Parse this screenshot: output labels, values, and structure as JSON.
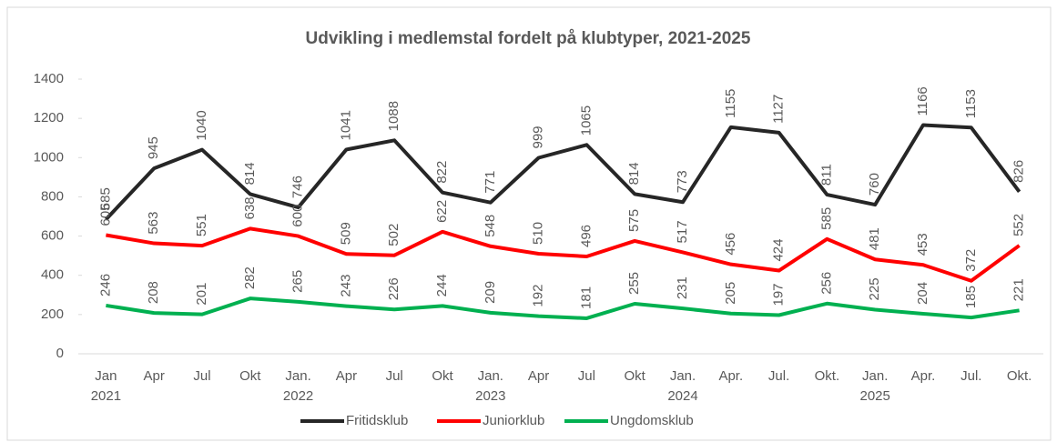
{
  "chart_data": {
    "type": "line",
    "title": "Udvikling i medlemstal fordelt på klubtyper, 2021-2025",
    "categories": [
      [
        "Jan",
        "2021"
      ],
      [
        "Apr"
      ],
      [
        "Jul"
      ],
      [
        "Okt"
      ],
      [
        "Jan.",
        "2022"
      ],
      [
        "Apr"
      ],
      [
        "Jul"
      ],
      [
        "Okt"
      ],
      [
        "Jan.",
        "2023"
      ],
      [
        "Apr"
      ],
      [
        "Jul"
      ],
      [
        "Okt"
      ],
      [
        "Jan.",
        "2024"
      ],
      [
        "Apr."
      ],
      [
        "Jul."
      ],
      [
        "Okt."
      ],
      [
        "Jan.",
        "2025"
      ],
      [
        "Apr."
      ],
      [
        "Jul."
      ],
      [
        "Okt."
      ]
    ],
    "series": [
      {
        "name": "Fritidsklub",
        "color": "#262626",
        "values": [
          685,
          945,
          1040,
          814,
          746,
          1041,
          1088,
          822,
          771,
          999,
          1065,
          814,
          773,
          1155,
          1127,
          811,
          760,
          1166,
          1153,
          826
        ]
      },
      {
        "name": "Juniorklub",
        "color": "#ff0000",
        "values": [
          605,
          563,
          551,
          638,
          600,
          509,
          502,
          622,
          548,
          510,
          496,
          575,
          517,
          456,
          424,
          585,
          481,
          453,
          372,
          552
        ]
      },
      {
        "name": "Ungdomsklub",
        "color": "#00b050",
        "values": [
          246,
          208,
          201,
          282,
          265,
          243,
          226,
          244,
          209,
          192,
          181,
          255,
          231,
          205,
          197,
          256,
          225,
          204,
          185,
          221
        ]
      }
    ],
    "ylim": [
      0,
      1400
    ],
    "yticks": [
      0,
      200,
      400,
      600,
      800,
      1000,
      1200,
      1400
    ],
    "legend": "bottom"
  }
}
